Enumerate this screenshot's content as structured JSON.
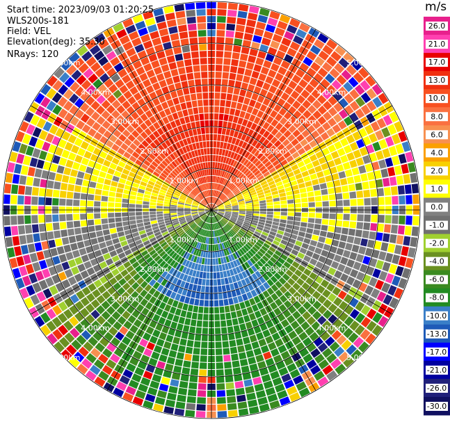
{
  "info": {
    "start_time": "Start time: 2023/09/03 01:20:25",
    "site": "WLS200s-181",
    "field": "Field: VEL",
    "elevation": "Elevation(deg): 35.30",
    "nrays": "NRays: 120"
  },
  "colorbar": {
    "unit": "m/s",
    "ticks": [
      "26.0",
      "21.0",
      "17.0",
      "13.0",
      "10.0",
      "8.0",
      "6.0",
      "4.0",
      "2.0",
      "1.0",
      "0.0",
      "-1.0",
      "-2.0",
      "-4.0",
      "-6.0",
      "-8.0",
      "-10.0",
      "-13.0",
      "-17.0",
      "-21.0",
      "-26.0",
      "-30.0"
    ],
    "bins": [
      {
        "range": "26 to 30",
        "color": "#e8208c"
      },
      {
        "range": "21 to 26",
        "color": "#ff40b0"
      },
      {
        "range": "17 to 21",
        "color": "#e80000"
      },
      {
        "range": "13 to 17",
        "color": "#f03010"
      },
      {
        "range": "10 to 13",
        "color": "#f85020"
      },
      {
        "range": "8 to 10",
        "color": "#fa7040"
      },
      {
        "range": "6 to 8",
        "color": "#f89050"
      },
      {
        "range": "4 to 6",
        "color": "#fba000"
      },
      {
        "range": "2 to 4",
        "color": "#f8d000"
      },
      {
        "range": "1 to 2",
        "color": "#ffff00"
      },
      {
        "range": "0 to 1",
        "color": "#808080"
      },
      {
        "range": "-1 to 0",
        "color": "#707070"
      },
      {
        "range": "-2 to -1",
        "color": "#a0d030"
      },
      {
        "range": "-4 to -2",
        "color": "#6a9020"
      },
      {
        "range": "-6 to -4",
        "color": "#3a8a20"
      },
      {
        "range": "-8 to -6",
        "color": "#228b22"
      },
      {
        "range": "-10 to -8",
        "color": "#3a7fc8"
      },
      {
        "range": "-13 to -10",
        "color": "#1e5ab8"
      },
      {
        "range": "-17 to -13",
        "color": "#0000ff"
      },
      {
        "range": "-21 to -17",
        "color": "#0000a0"
      },
      {
        "range": "-26 to -21",
        "color": "#20207a"
      },
      {
        "range": "-30 to -26",
        "color": "#101060"
      }
    ]
  },
  "chart_data": {
    "type": "heatmap",
    "projection": "polar PPI",
    "field": "VEL",
    "units": "m/s",
    "nrays": 120,
    "elevation_deg": 35.3,
    "range_ring_labels": [
      "1.00km",
      "2.00km",
      "3.00km",
      "4.00km",
      "5.00km"
    ],
    "max_range_km": 5.0,
    "spokes_deg": [
      0,
      30,
      60,
      90,
      120,
      150,
      180,
      210,
      240,
      270,
      300,
      330
    ],
    "regions": [
      {
        "sector": "north",
        "description_values": [
          4,
          6,
          8,
          10,
          13
        ]
      },
      {
        "sector": "east-west band",
        "description_values": [
          -1,
          0,
          1,
          2
        ]
      },
      {
        "sector": "south",
        "description_values": [
          -4,
          -6,
          -8,
          -10,
          -13,
          -17
        ]
      }
    ]
  }
}
